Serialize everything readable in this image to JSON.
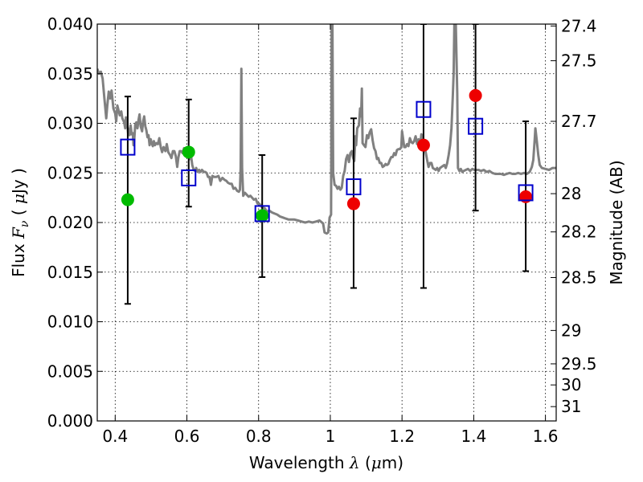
{
  "chart_data": {
    "type": "scatter",
    "xlabel": {
      "prefix": "Wavelength ",
      "symbol": "λ",
      "units_open": " (",
      "mu": "μ",
      "units_close": "m)"
    },
    "ylabel": {
      "prefix": "Flux ",
      "symbol": "F",
      "subscript": "ν",
      "units_open": " ( ",
      "mu": "μ",
      "units_close": "Jy )"
    },
    "y2label": "Magnitude (AB)",
    "xlim": [
      0.35,
      1.63
    ],
    "ylim": [
      0.0,
      0.04
    ],
    "grid": true,
    "x_ticks": [
      {
        "value": 0.4,
        "label": "0.4"
      },
      {
        "value": 0.6,
        "label": "0.6"
      },
      {
        "value": 0.8,
        "label": "0.8"
      },
      {
        "value": 1.0,
        "label": "1"
      },
      {
        "value": 1.2,
        "label": "1.2"
      },
      {
        "value": 1.4,
        "label": "1.4"
      },
      {
        "value": 1.6,
        "label": "1.6"
      }
    ],
    "y_ticks": [
      {
        "value": 0.0,
        "label": "0.000"
      },
      {
        "value": 0.005,
        "label": "0.005"
      },
      {
        "value": 0.01,
        "label": "0.010"
      },
      {
        "value": 0.015,
        "label": "0.015"
      },
      {
        "value": 0.02,
        "label": "0.020"
      },
      {
        "value": 0.025,
        "label": "0.025"
      },
      {
        "value": 0.03,
        "label": "0.030"
      },
      {
        "value": 0.035,
        "label": "0.035"
      },
      {
        "value": 0.04,
        "label": "0.040"
      }
    ],
    "y2_ticks": [
      {
        "value": 27.4,
        "label": "27.4"
      },
      {
        "value": 27.5,
        "label": "27.5"
      },
      {
        "value": 27.7,
        "label": "27.7"
      },
      {
        "value": 28.0,
        "label": "28"
      },
      {
        "value": 28.2,
        "label": "28.2"
      },
      {
        "value": 28.5,
        "label": "28.5"
      },
      {
        "value": 29.0,
        "label": "29"
      },
      {
        "value": 29.5,
        "label": "29.5"
      },
      {
        "value": 30.0,
        "label": "30"
      },
      {
        "value": 31.0,
        "label": "31"
      }
    ],
    "spectrum": {
      "color": "#808080",
      "points": [
        [
          0.35,
          0.0355
        ],
        [
          0.355,
          0.035
        ],
        [
          0.36,
          0.0352
        ],
        [
          0.365,
          0.0345
        ],
        [
          0.37,
          0.0325
        ],
        [
          0.375,
          0.0305
        ],
        [
          0.378,
          0.0318
        ],
        [
          0.382,
          0.0332
        ],
        [
          0.386,
          0.0325
        ],
        [
          0.39,
          0.0333
        ],
        [
          0.395,
          0.0315
        ],
        [
          0.4,
          0.031
        ],
        [
          0.403,
          0.0302
        ],
        [
          0.406,
          0.0318
        ],
        [
          0.41,
          0.0312
        ],
        [
          0.413,
          0.0308
        ],
        [
          0.417,
          0.0312
        ],
        [
          0.42,
          0.0305
        ],
        [
          0.425,
          0.0301
        ],
        [
          0.428,
          0.0295
        ],
        [
          0.43,
          0.0306
        ],
        [
          0.433,
          0.0303
        ],
        [
          0.436,
          0.029
        ],
        [
          0.438,
          0.0294
        ],
        [
          0.44,
          0.0288
        ],
        [
          0.443,
          0.0298
        ],
        [
          0.446,
          0.0289
        ],
        [
          0.449,
          0.029
        ],
        [
          0.451,
          0.0278
        ],
        [
          0.453,
          0.0282
        ],
        [
          0.456,
          0.0299
        ],
        [
          0.459,
          0.0301
        ],
        [
          0.462,
          0.0295
        ],
        [
          0.465,
          0.0303
        ],
        [
          0.468,
          0.0309
        ],
        [
          0.471,
          0.0297
        ],
        [
          0.475,
          0.0292
        ],
        [
          0.478,
          0.0302
        ],
        [
          0.481,
          0.0307
        ],
        [
          0.484,
          0.0297
        ],
        [
          0.487,
          0.0293
        ],
        [
          0.49,
          0.0286
        ],
        [
          0.493,
          0.0288
        ],
        [
          0.496,
          0.0278
        ],
        [
          0.499,
          0.0284
        ],
        [
          0.502,
          0.028
        ],
        [
          0.505,
          0.0277
        ],
        [
          0.508,
          0.0282
        ],
        [
          0.511,
          0.0278
        ],
        [
          0.515,
          0.028
        ],
        [
          0.519,
          0.0279
        ],
        [
          0.523,
          0.0285
        ],
        [
          0.527,
          0.0276
        ],
        [
          0.531,
          0.0271
        ],
        [
          0.535,
          0.0276
        ],
        [
          0.54,
          0.0272
        ],
        [
          0.544,
          0.0279
        ],
        [
          0.548,
          0.0271
        ],
        [
          0.553,
          0.0268
        ],
        [
          0.557,
          0.0265
        ],
        [
          0.561,
          0.0272
        ],
        [
          0.565,
          0.0272
        ],
        [
          0.569,
          0.0267
        ],
        [
          0.573,
          0.0256
        ],
        [
          0.576,
          0.0265
        ],
        [
          0.58,
          0.0272
        ],
        [
          0.584,
          0.0272
        ],
        [
          0.588,
          0.027
        ],
        [
          0.592,
          0.0275
        ],
        [
          0.596,
          0.0272
        ],
        [
          0.6,
          0.0272
        ],
        [
          0.604,
          0.0268
        ],
        [
          0.608,
          0.0264
        ],
        [
          0.612,
          0.0266
        ],
        [
          0.615,
          0.0258
        ],
        [
          0.619,
          0.0253
        ],
        [
          0.623,
          0.0252
        ],
        [
          0.626,
          0.0255
        ],
        [
          0.63,
          0.0251
        ],
        [
          0.634,
          0.0253
        ],
        [
          0.638,
          0.0251
        ],
        [
          0.642,
          0.0253
        ],
        [
          0.647,
          0.0251
        ],
        [
          0.651,
          0.0251
        ],
        [
          0.655,
          0.025
        ],
        [
          0.659,
          0.0246
        ],
        [
          0.663,
          0.0246
        ],
        [
          0.667,
          0.0238
        ],
        [
          0.671,
          0.0247
        ],
        [
          0.676,
          0.0246
        ],
        [
          0.682,
          0.0246
        ],
        [
          0.688,
          0.0247
        ],
        [
          0.693,
          0.0242
        ],
        [
          0.699,
          0.0245
        ],
        [
          0.705,
          0.0243
        ],
        [
          0.71,
          0.0242
        ],
        [
          0.715,
          0.024
        ],
        [
          0.72,
          0.0239
        ],
        [
          0.725,
          0.0239
        ],
        [
          0.73,
          0.0234
        ],
        [
          0.735,
          0.0235
        ],
        [
          0.74,
          0.0232
        ],
        [
          0.745,
          0.0231
        ],
        [
          0.748,
          0.0233
        ],
        [
          0.75,
          0.0255
        ],
        [
          0.752,
          0.0355
        ],
        [
          0.754,
          0.0255
        ],
        [
          0.757,
          0.0227
        ],
        [
          0.762,
          0.023
        ],
        [
          0.767,
          0.0228
        ],
        [
          0.772,
          0.0226
        ],
        [
          0.777,
          0.0227
        ],
        [
          0.782,
          0.0225
        ],
        [
          0.787,
          0.0223
        ],
        [
          0.792,
          0.0224
        ],
        [
          0.797,
          0.0219
        ],
        [
          0.802,
          0.0219
        ],
        [
          0.808,
          0.0216
        ],
        [
          0.813,
          0.0215
        ],
        [
          0.818,
          0.0214
        ],
        [
          0.823,
          0.0211
        ],
        [
          0.83,
          0.0212
        ],
        [
          0.838,
          0.021
        ],
        [
          0.845,
          0.0209
        ],
        [
          0.852,
          0.0208
        ],
        [
          0.86,
          0.0206
        ],
        [
          0.868,
          0.0205
        ],
        [
          0.876,
          0.0204
        ],
        [
          0.884,
          0.0203
        ],
        [
          0.892,
          0.0203
        ],
        [
          0.9,
          0.0203
        ],
        [
          0.91,
          0.0202
        ],
        [
          0.92,
          0.0201
        ],
        [
          0.93,
          0.02
        ],
        [
          0.94,
          0.0201
        ],
        [
          0.95,
          0.02
        ],
        [
          0.96,
          0.0201
        ],
        [
          0.97,
          0.0202
        ],
        [
          0.98,
          0.0199
        ],
        [
          0.984,
          0.019
        ],
        [
          0.99,
          0.0189
        ],
        [
          0.994,
          0.019
        ],
        [
          0.998,
          0.0205
        ],
        [
          1.002,
          0.0208
        ],
        [
          1.004,
          0.04
        ],
        [
          1.006,
          0.04
        ],
        [
          1.008,
          0.025
        ],
        [
          1.012,
          0.0238
        ],
        [
          1.016,
          0.0237
        ],
        [
          1.02,
          0.0234
        ],
        [
          1.024,
          0.0236
        ],
        [
          1.028,
          0.0233
        ],
        [
          1.032,
          0.0235
        ],
        [
          1.036,
          0.0247
        ],
        [
          1.04,
          0.0252
        ],
        [
          1.044,
          0.0264
        ],
        [
          1.048,
          0.0268
        ],
        [
          1.052,
          0.0261
        ],
        [
          1.056,
          0.027
        ],
        [
          1.06,
          0.0272
        ],
        [
          1.064,
          0.0265
        ],
        [
          1.067,
          0.0262
        ],
        [
          1.07,
          0.0287
        ],
        [
          1.072,
          0.0278
        ],
        [
          1.075,
          0.0295
        ],
        [
          1.08,
          0.0298
        ],
        [
          1.083,
          0.0315
        ],
        [
          1.086,
          0.0307
        ],
        [
          1.088,
          0.0335
        ],
        [
          1.09,
          0.028
        ],
        [
          1.094,
          0.0278
        ],
        [
          1.098,
          0.0276
        ],
        [
          1.102,
          0.0288
        ],
        [
          1.106,
          0.0285
        ],
        [
          1.11,
          0.0291
        ],
        [
          1.114,
          0.0294
        ],
        [
          1.118,
          0.0283
        ],
        [
          1.122,
          0.0275
        ],
        [
          1.126,
          0.0272
        ],
        [
          1.13,
          0.0264
        ],
        [
          1.134,
          0.0265
        ],
        [
          1.138,
          0.026
        ],
        [
          1.142,
          0.026
        ],
        [
          1.146,
          0.0256
        ],
        [
          1.15,
          0.0257
        ],
        [
          1.154,
          0.0259
        ],
        [
          1.158,
          0.0258
        ],
        [
          1.162,
          0.0259
        ],
        [
          1.166,
          0.0263
        ],
        [
          1.17,
          0.0266
        ],
        [
          1.174,
          0.0266
        ],
        [
          1.178,
          0.027
        ],
        [
          1.182,
          0.0268
        ],
        [
          1.186,
          0.0273
        ],
        [
          1.19,
          0.0274
        ],
        [
          1.194,
          0.0274
        ],
        [
          1.198,
          0.0276
        ],
        [
          1.2,
          0.0292
        ],
        [
          1.202,
          0.0287
        ],
        [
          1.206,
          0.0276
        ],
        [
          1.21,
          0.0276
        ],
        [
          1.214,
          0.0279
        ],
        [
          1.218,
          0.0277
        ],
        [
          1.222,
          0.0285
        ],
        [
          1.226,
          0.0281
        ],
        [
          1.23,
          0.028
        ],
        [
          1.234,
          0.0282
        ],
        [
          1.238,
          0.0287
        ],
        [
          1.242,
          0.0279
        ],
        [
          1.246,
          0.0284
        ],
        [
          1.25,
          0.0278
        ],
        [
          1.254,
          0.0289
        ],
        [
          1.258,
          0.0285
        ],
        [
          1.262,
          0.0277
        ],
        [
          1.266,
          0.0271
        ],
        [
          1.27,
          0.0263
        ],
        [
          1.274,
          0.0256
        ],
        [
          1.278,
          0.026
        ],
        [
          1.282,
          0.026
        ],
        [
          1.286,
          0.0255
        ],
        [
          1.29,
          0.0254
        ],
        [
          1.294,
          0.0253
        ],
        [
          1.298,
          0.0255
        ],
        [
          1.302,
          0.0252
        ],
        [
          1.306,
          0.0255
        ],
        [
          1.31,
          0.0256
        ],
        [
          1.314,
          0.0257
        ],
        [
          1.318,
          0.0258
        ],
        [
          1.322,
          0.0255
        ],
        [
          1.326,
          0.026
        ],
        [
          1.33,
          0.0268
        ],
        [
          1.334,
          0.0278
        ],
        [
          1.338,
          0.0295
        ],
        [
          1.342,
          0.033
        ],
        [
          1.344,
          0.035
        ],
        [
          1.346,
          0.04
        ],
        [
          1.35,
          0.04
        ],
        [
          1.354,
          0.033
        ],
        [
          1.356,
          0.0255
        ],
        [
          1.36,
          0.0252
        ],
        [
          1.364,
          0.0254
        ],
        [
          1.368,
          0.0251
        ],
        [
          1.372,
          0.0252
        ],
        [
          1.378,
          0.0253
        ],
        [
          1.384,
          0.0254
        ],
        [
          1.39,
          0.0252
        ],
        [
          1.396,
          0.0254
        ],
        [
          1.402,
          0.0253
        ],
        [
          1.408,
          0.0253
        ],
        [
          1.414,
          0.0253
        ],
        [
          1.42,
          0.0252
        ],
        [
          1.428,
          0.0253
        ],
        [
          1.436,
          0.0251
        ],
        [
          1.444,
          0.0252
        ],
        [
          1.452,
          0.025
        ],
        [
          1.46,
          0.0249
        ],
        [
          1.468,
          0.0249
        ],
        [
          1.476,
          0.0249
        ],
        [
          1.484,
          0.0248
        ],
        [
          1.492,
          0.0249
        ],
        [
          1.5,
          0.025
        ],
        [
          1.508,
          0.0249
        ],
        [
          1.516,
          0.0249
        ],
        [
          1.524,
          0.025
        ],
        [
          1.532,
          0.0249
        ],
        [
          1.54,
          0.025
        ],
        [
          1.548,
          0.0249
        ],
        [
          1.556,
          0.0251
        ],
        [
          1.562,
          0.0256
        ],
        [
          1.566,
          0.0263
        ],
        [
          1.57,
          0.0283
        ],
        [
          1.572,
          0.0295
        ],
        [
          1.575,
          0.0285
        ],
        [
          1.58,
          0.0268
        ],
        [
          1.584,
          0.0258
        ],
        [
          1.59,
          0.0255
        ],
        [
          1.6,
          0.0254
        ],
        [
          1.61,
          0.0253
        ],
        [
          1.62,
          0.0255
        ],
        [
          1.63,
          0.0255
        ]
      ]
    },
    "error_bars": [
      {
        "x": 0.435,
        "ylow": 0.0118,
        "yhigh": 0.0327
      },
      {
        "x": 0.605,
        "ylow": 0.0216,
        "yhigh": 0.0324
      },
      {
        "x": 0.81,
        "ylow": 0.0145,
        "yhigh": 0.0268
      },
      {
        "x": 1.065,
        "ylow": 0.0134,
        "yhigh": 0.0305
      },
      {
        "x": 1.26,
        "ylow": 0.0134,
        "yhigh": 0.04
      },
      {
        "x": 1.405,
        "ylow": 0.0212,
        "yhigh": 0.04
      },
      {
        "x": 1.545,
        "ylow": 0.0151,
        "yhigh": 0.0302
      }
    ],
    "model_points": {
      "marker": "open-square",
      "color": "#0000cc",
      "points": [
        {
          "x": 0.435,
          "y": 0.0276
        },
        {
          "x": 0.605,
          "y": 0.0245
        },
        {
          "x": 0.81,
          "y": 0.0209
        },
        {
          "x": 1.065,
          "y": 0.0236
        },
        {
          "x": 1.26,
          "y": 0.0314
        },
        {
          "x": 1.405,
          "y": 0.0297
        },
        {
          "x": 1.545,
          "y": 0.023
        }
      ]
    },
    "detections_green": {
      "marker": "filled-circle",
      "color": "#00bb00",
      "points": [
        {
          "x": 0.435,
          "y": 0.0223
        },
        {
          "x": 0.605,
          "y": 0.0271
        },
        {
          "x": 0.81,
          "y": 0.0207
        }
      ]
    },
    "detections_red": {
      "marker": "filled-circle",
      "color": "#ee0000",
      "points": [
        {
          "x": 1.065,
          "y": 0.0219
        },
        {
          "x": 1.26,
          "y": 0.0278
        },
        {
          "x": 1.405,
          "y": 0.0328
        },
        {
          "x": 1.545,
          "y": 0.0226
        }
      ]
    }
  }
}
